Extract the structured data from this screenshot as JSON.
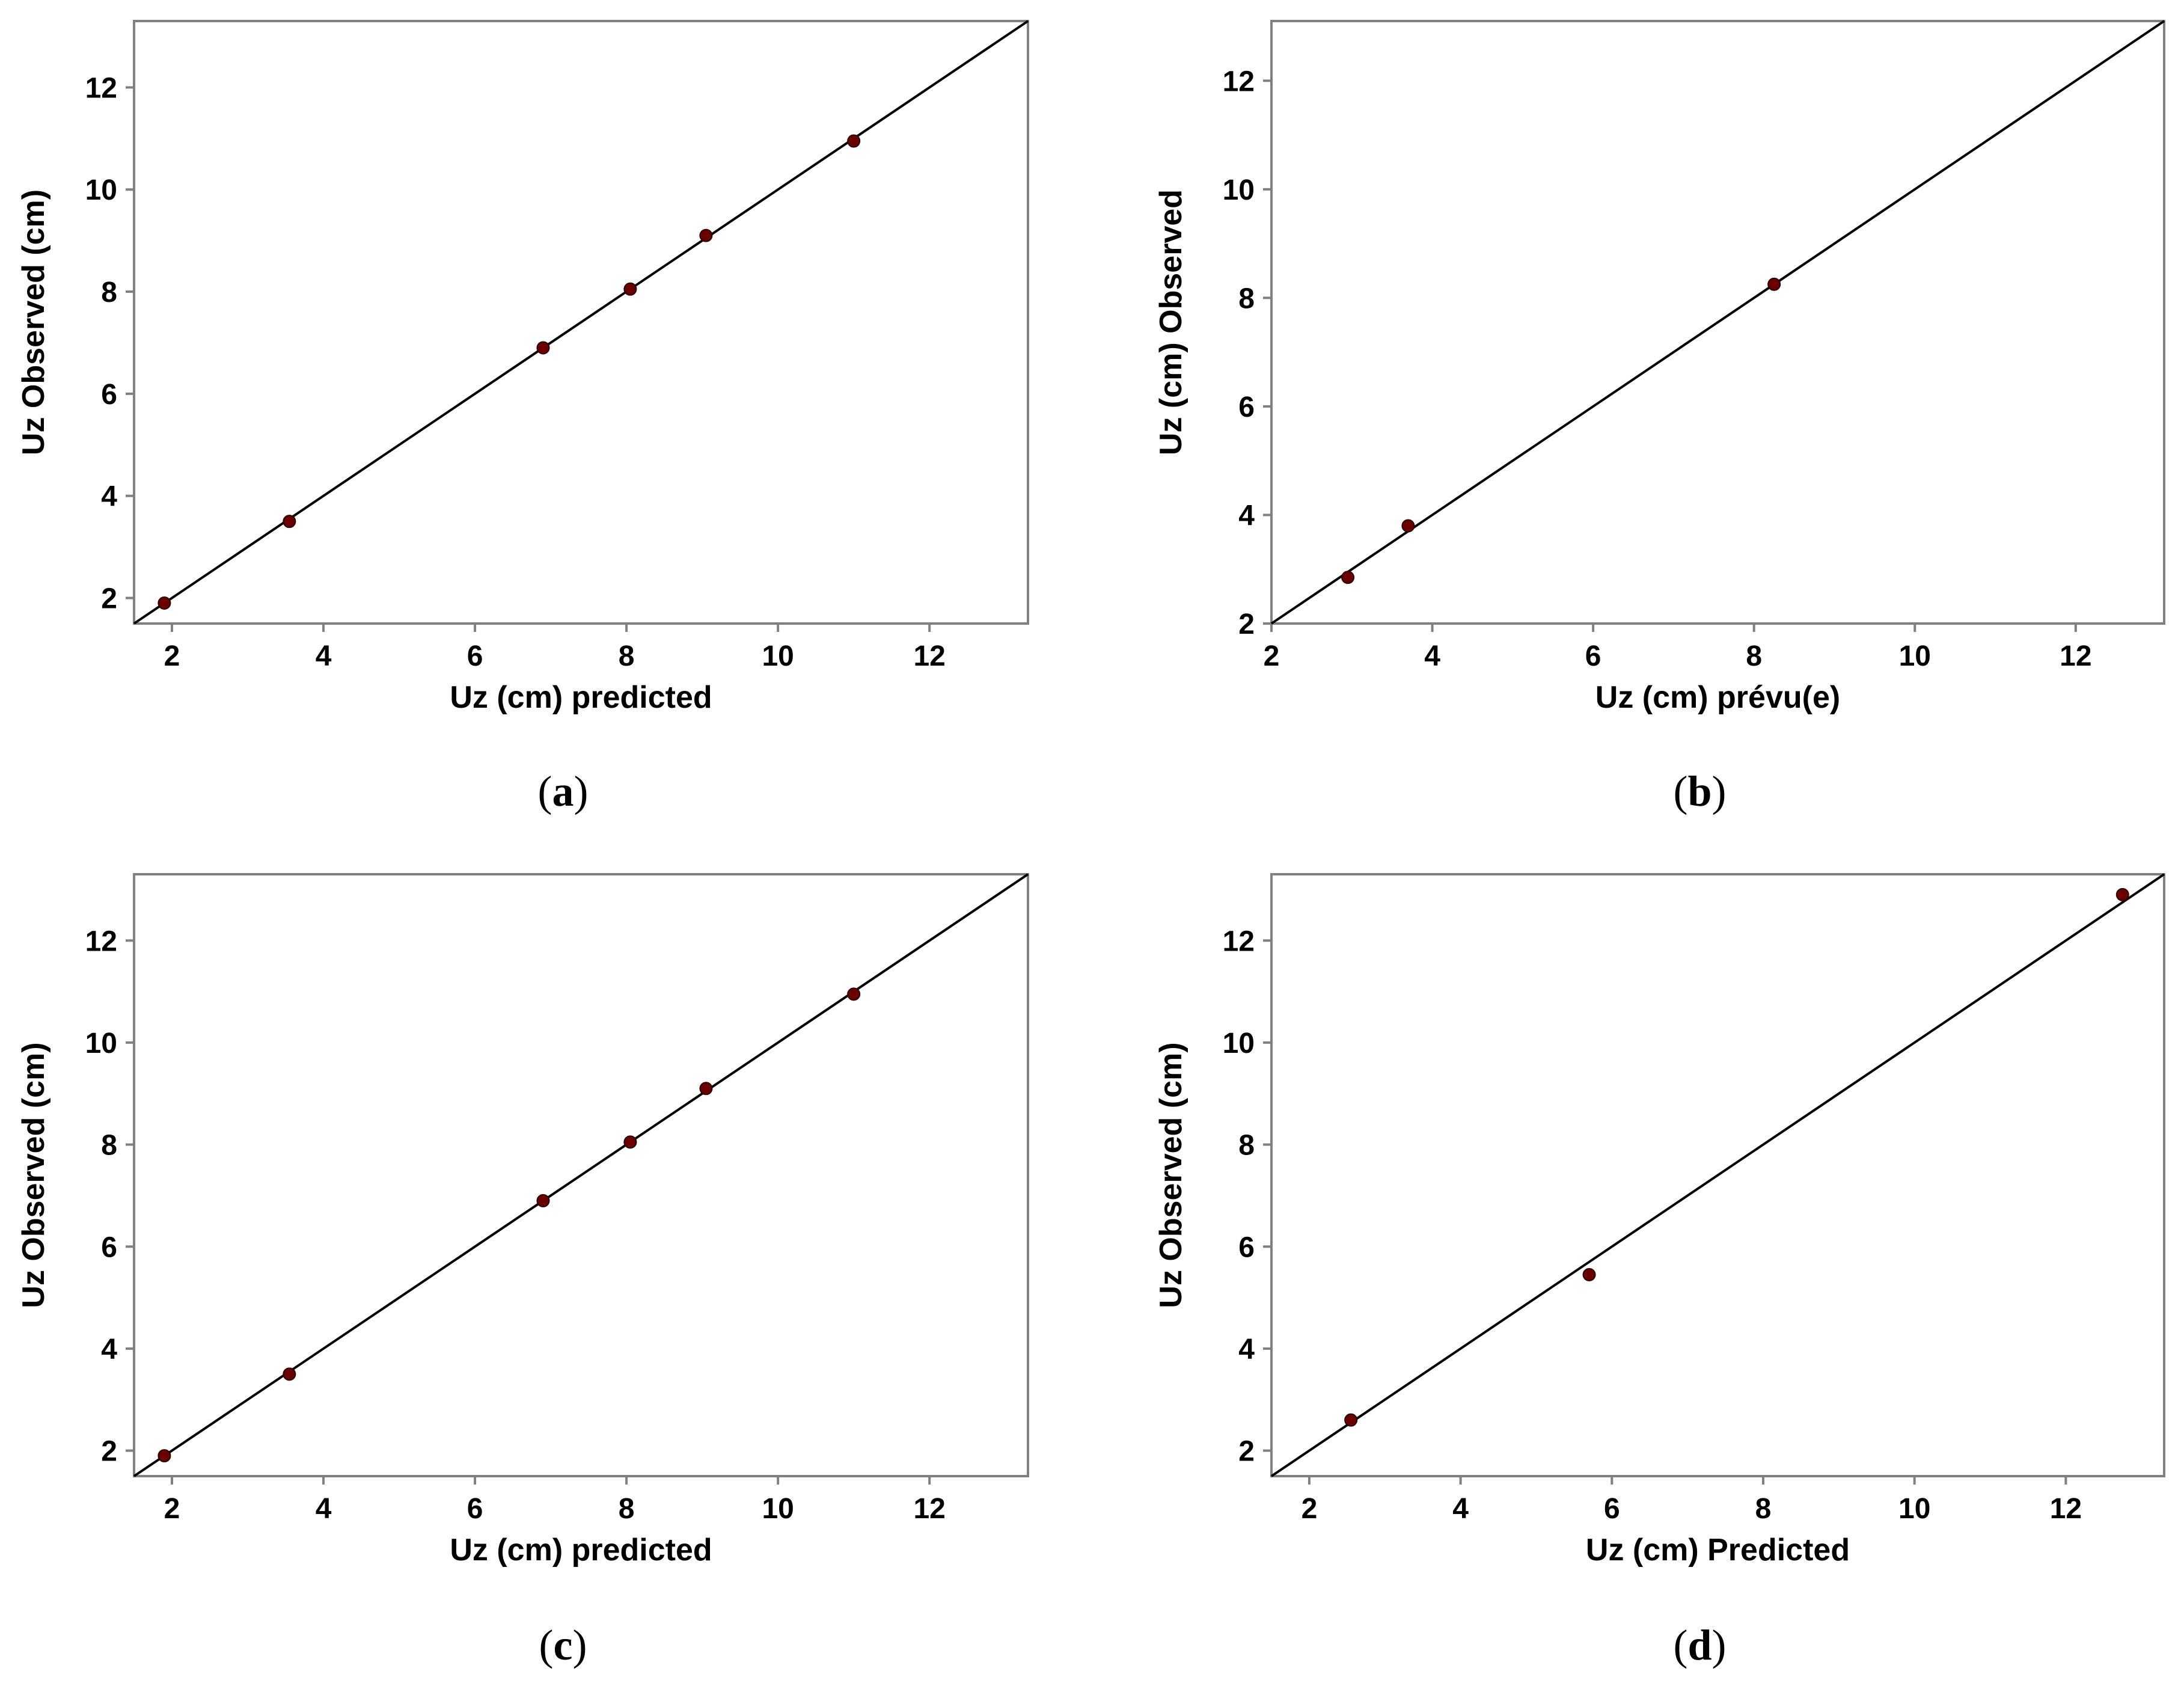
{
  "chart_data": [
    {
      "type": "scatter",
      "panel_label": "a",
      "xlabel": "Uz (cm) predicted",
      "ylabel": "Uz Observed (cm)",
      "xlim": [
        1.5,
        13.3
      ],
      "ylim": [
        1.5,
        13.3
      ],
      "xticks": [
        2,
        4,
        6,
        8,
        10,
        12
      ],
      "yticks": [
        2,
        4,
        6,
        8,
        10,
        12
      ],
      "points": [
        {
          "x": 1.9,
          "y": 1.9
        },
        {
          "x": 3.55,
          "y": 3.5
        },
        {
          "x": 6.9,
          "y": 6.9
        },
        {
          "x": 8.05,
          "y": 8.05
        },
        {
          "x": 9.05,
          "y": 9.1
        },
        {
          "x": 11.0,
          "y": 10.95
        }
      ],
      "reference_line": "y = x",
      "grid": false,
      "colors": {
        "points": "#6b0000",
        "line": "#000000",
        "frame": "#808080"
      }
    },
    {
      "type": "scatter",
      "panel_label": "b",
      "xlabel": "Uz (cm) prévu(e)",
      "ylabel": "Uz (cm) Observed",
      "xlim": [
        2.0,
        13.1
      ],
      "ylim": [
        2.0,
        13.1
      ],
      "xticks": [
        2,
        4,
        6,
        8,
        10,
        12
      ],
      "yticks": [
        2,
        4,
        6,
        8,
        10,
        12
      ],
      "points": [
        {
          "x": 2.95,
          "y": 2.85
        },
        {
          "x": 3.7,
          "y": 3.8
        },
        {
          "x": 8.25,
          "y": 8.25
        }
      ],
      "reference_line": "y = x",
      "grid": false,
      "colors": {
        "points": "#6b0000",
        "line": "#000000",
        "frame": "#808080"
      }
    },
    {
      "type": "scatter",
      "panel_label": "c",
      "xlabel": "Uz (cm) predicted",
      "ylabel": "Uz Observed (cm)",
      "xlim": [
        1.5,
        13.3
      ],
      "ylim": [
        1.5,
        13.3
      ],
      "xticks": [
        2,
        4,
        6,
        8,
        10,
        12
      ],
      "yticks": [
        2,
        4,
        6,
        8,
        10,
        12
      ],
      "points": [
        {
          "x": 1.9,
          "y": 1.9
        },
        {
          "x": 3.55,
          "y": 3.5
        },
        {
          "x": 6.9,
          "y": 6.9
        },
        {
          "x": 8.05,
          "y": 8.05
        },
        {
          "x": 9.05,
          "y": 9.1
        },
        {
          "x": 11.0,
          "y": 10.95
        }
      ],
      "reference_line": "y = x",
      "grid": false,
      "colors": {
        "points": "#6b0000",
        "line": "#000000",
        "frame": "#808080"
      }
    },
    {
      "type": "scatter",
      "panel_label": "d",
      "xlabel": "Uz (cm) Predicted",
      "ylabel": "Uz Observed (cm)",
      "xlim": [
        1.5,
        13.3
      ],
      "ylim": [
        1.5,
        13.3
      ],
      "xticks": [
        2,
        4,
        6,
        8,
        10,
        12
      ],
      "yticks": [
        2,
        4,
        6,
        8,
        10,
        12
      ],
      "points": [
        {
          "x": 2.55,
          "y": 2.6
        },
        {
          "x": 5.7,
          "y": 5.45
        },
        {
          "x": 12.75,
          "y": 12.9
        }
      ],
      "reference_line": "y = x",
      "grid": false,
      "colors": {
        "points": "#6b0000",
        "line": "#000000",
        "frame": "#808080"
      }
    }
  ]
}
